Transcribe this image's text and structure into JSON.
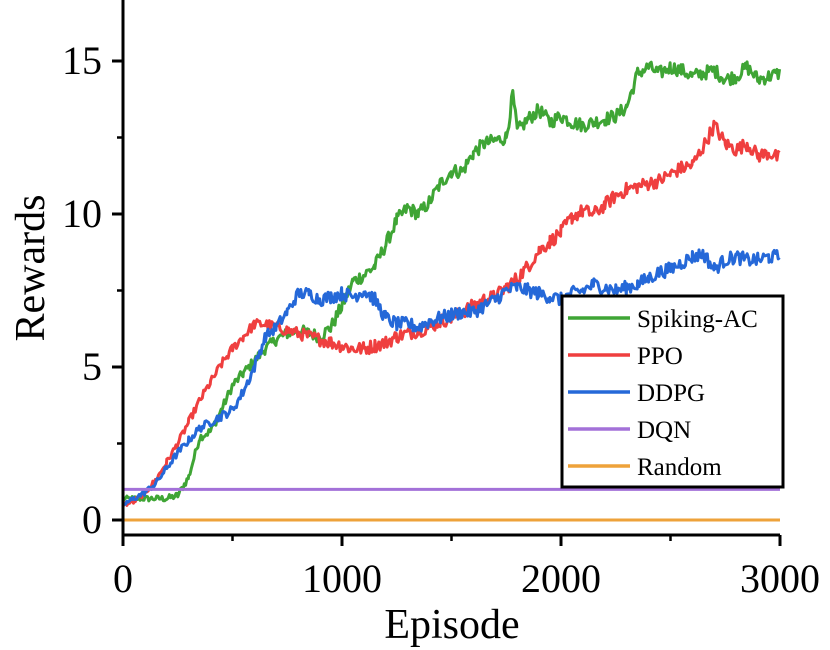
{
  "chart_data": {
    "type": "line",
    "title": "",
    "xlabel": "Episode",
    "ylabel": "Rewards",
    "xlim": [
      0,
      3000
    ],
    "ylim": [
      -0.5,
      17
    ],
    "x_ticks": [
      "0",
      "1000",
      "2000",
      "3000"
    ],
    "y_ticks": [
      "0",
      "5",
      "10",
      "15"
    ],
    "grid": false,
    "legend_position": "bottom-right",
    "series": [
      {
        "name": "Spiking-AC",
        "color": "#3fa535",
        "points": [
          [
            0,
            0.7
          ],
          [
            100,
            0.7
          ],
          [
            200,
            0.7
          ],
          [
            250,
            0.8
          ],
          [
            300,
            1.4
          ],
          [
            350,
            2.7
          ],
          [
            400,
            2.9
          ],
          [
            450,
            3.6
          ],
          [
            500,
            4.4
          ],
          [
            550,
            4.8
          ],
          [
            600,
            5.2
          ],
          [
            650,
            5.6
          ],
          [
            700,
            5.9
          ],
          [
            750,
            6.1
          ],
          [
            800,
            6.2
          ],
          [
            850,
            6.1
          ],
          [
            900,
            6.0
          ],
          [
            950,
            6.3
          ],
          [
            1000,
            7.0
          ],
          [
            1050,
            7.8
          ],
          [
            1100,
            8.0
          ],
          [
            1150,
            8.3
          ],
          [
            1200,
            9.0
          ],
          [
            1250,
            9.8
          ],
          [
            1300,
            10.2
          ],
          [
            1350,
            10.0
          ],
          [
            1400,
            10.4
          ],
          [
            1450,
            11.0
          ],
          [
            1500,
            11.4
          ],
          [
            1550,
            11.4
          ],
          [
            1600,
            12.0
          ],
          [
            1650,
            12.3
          ],
          [
            1700,
            12.4
          ],
          [
            1750,
            12.5
          ],
          [
            1780,
            13.9
          ],
          [
            1800,
            12.7
          ],
          [
            1850,
            13.1
          ],
          [
            1900,
            13.4
          ],
          [
            1950,
            13.0
          ],
          [
            2000,
            13.2
          ],
          [
            2050,
            13.0
          ],
          [
            2100,
            12.9
          ],
          [
            2150,
            13.0
          ],
          [
            2200,
            13.1
          ],
          [
            2250,
            13.2
          ],
          [
            2300,
            13.5
          ],
          [
            2350,
            14.6
          ],
          [
            2400,
            14.8
          ],
          [
            2450,
            14.6
          ],
          [
            2500,
            14.8
          ],
          [
            2550,
            14.7
          ],
          [
            2600,
            14.5
          ],
          [
            2650,
            14.6
          ],
          [
            2700,
            14.7
          ],
          [
            2750,
            14.4
          ],
          [
            2800,
            14.5
          ],
          [
            2850,
            14.8
          ],
          [
            2900,
            14.4
          ],
          [
            2950,
            14.5
          ],
          [
            3000,
            14.6
          ]
        ]
      },
      {
        "name": "PPO",
        "color": "#ef3f3f",
        "points": [
          [
            0,
            0.5
          ],
          [
            50,
            0.6
          ],
          [
            100,
            0.9
          ],
          [
            150,
            1.3
          ],
          [
            200,
            1.9
          ],
          [
            250,
            2.5
          ],
          [
            300,
            3.2
          ],
          [
            350,
            3.9
          ],
          [
            400,
            4.5
          ],
          [
            450,
            5.1
          ],
          [
            500,
            5.6
          ],
          [
            550,
            6.0
          ],
          [
            600,
            6.4
          ],
          [
            650,
            6.4
          ],
          [
            700,
            6.3
          ],
          [
            750,
            6.2
          ],
          [
            800,
            6.1
          ],
          [
            850,
            6.0
          ],
          [
            900,
            5.9
          ],
          [
            950,
            5.8
          ],
          [
            1000,
            5.7
          ],
          [
            1050,
            5.6
          ],
          [
            1100,
            5.6
          ],
          [
            1150,
            5.7
          ],
          [
            1200,
            5.8
          ],
          [
            1250,
            6.0
          ],
          [
            1300,
            6.1
          ],
          [
            1350,
            6.2
          ],
          [
            1400,
            6.3
          ],
          [
            1450,
            6.5
          ],
          [
            1500,
            6.6
          ],
          [
            1550,
            6.8
          ],
          [
            1600,
            7.0
          ],
          [
            1650,
            7.2
          ],
          [
            1700,
            7.3
          ],
          [
            1750,
            7.6
          ],
          [
            1800,
            7.9
          ],
          [
            1850,
            8.3
          ],
          [
            1900,
            8.8
          ],
          [
            1950,
            9.1
          ],
          [
            2000,
            9.4
          ],
          [
            2050,
            9.9
          ],
          [
            2100,
            10.1
          ],
          [
            2150,
            10.0
          ],
          [
            2200,
            10.3
          ],
          [
            2250,
            10.6
          ],
          [
            2300,
            10.8
          ],
          [
            2350,
            10.9
          ],
          [
            2400,
            11.0
          ],
          [
            2450,
            11.1
          ],
          [
            2500,
            11.3
          ],
          [
            2550,
            11.5
          ],
          [
            2600,
            11.6
          ],
          [
            2650,
            12.2
          ],
          [
            2700,
            12.9
          ],
          [
            2750,
            12.3
          ],
          [
            2800,
            12.1
          ],
          [
            2850,
            12.3
          ],
          [
            2900,
            11.9
          ],
          [
            2950,
            12.0
          ],
          [
            3000,
            11.8
          ]
        ]
      },
      {
        "name": "DDPG",
        "color": "#2568d8",
        "points": [
          [
            0,
            0.5
          ],
          [
            50,
            0.7
          ],
          [
            100,
            0.9
          ],
          [
            150,
            1.2
          ],
          [
            200,
            1.7
          ],
          [
            250,
            2.2
          ],
          [
            300,
            2.6
          ],
          [
            350,
            3.0
          ],
          [
            400,
            3.2
          ],
          [
            450,
            3.4
          ],
          [
            500,
            3.6
          ],
          [
            550,
            4.2
          ],
          [
            600,
            5.0
          ],
          [
            650,
            6.0
          ],
          [
            700,
            6.3
          ],
          [
            750,
            6.8
          ],
          [
            800,
            7.4
          ],
          [
            850,
            7.4
          ],
          [
            900,
            7.2
          ],
          [
            950,
            7.3
          ],
          [
            1000,
            7.4
          ],
          [
            1050,
            7.3
          ],
          [
            1100,
            7.5
          ],
          [
            1150,
            7.2
          ],
          [
            1200,
            6.6
          ],
          [
            1250,
            6.4
          ],
          [
            1300,
            6.4
          ],
          [
            1350,
            6.3
          ],
          [
            1400,
            6.5
          ],
          [
            1450,
            6.6
          ],
          [
            1500,
            6.7
          ],
          [
            1550,
            6.8
          ],
          [
            1600,
            6.8
          ],
          [
            1650,
            7.0
          ],
          [
            1700,
            7.2
          ],
          [
            1750,
            7.5
          ],
          [
            1800,
            7.6
          ],
          [
            1850,
            7.5
          ],
          [
            1900,
            7.4
          ],
          [
            1950,
            7.3
          ],
          [
            2000,
            7.2
          ],
          [
            2050,
            7.4
          ],
          [
            2100,
            7.5
          ],
          [
            2150,
            7.7
          ],
          [
            2200,
            7.6
          ],
          [
            2250,
            7.5
          ],
          [
            2300,
            7.6
          ],
          [
            2350,
            7.7
          ],
          [
            2400,
            7.9
          ],
          [
            2450,
            8.1
          ],
          [
            2500,
            8.2
          ],
          [
            2550,
            8.4
          ],
          [
            2600,
            8.6
          ],
          [
            2650,
            8.7
          ],
          [
            2700,
            8.2
          ],
          [
            2750,
            8.5
          ],
          [
            2800,
            8.6
          ],
          [
            2850,
            8.5
          ],
          [
            2900,
            8.5
          ],
          [
            2950,
            8.6
          ],
          [
            3000,
            8.6
          ]
        ]
      },
      {
        "name": "DQN",
        "color": "#a371d8",
        "points": [
          [
            0,
            1.0
          ],
          [
            3000,
            1.0
          ]
        ]
      },
      {
        "name": "Random",
        "color": "#eea23a",
        "points": [
          [
            0,
            0.0
          ],
          [
            3000,
            0.0
          ]
        ]
      }
    ]
  }
}
